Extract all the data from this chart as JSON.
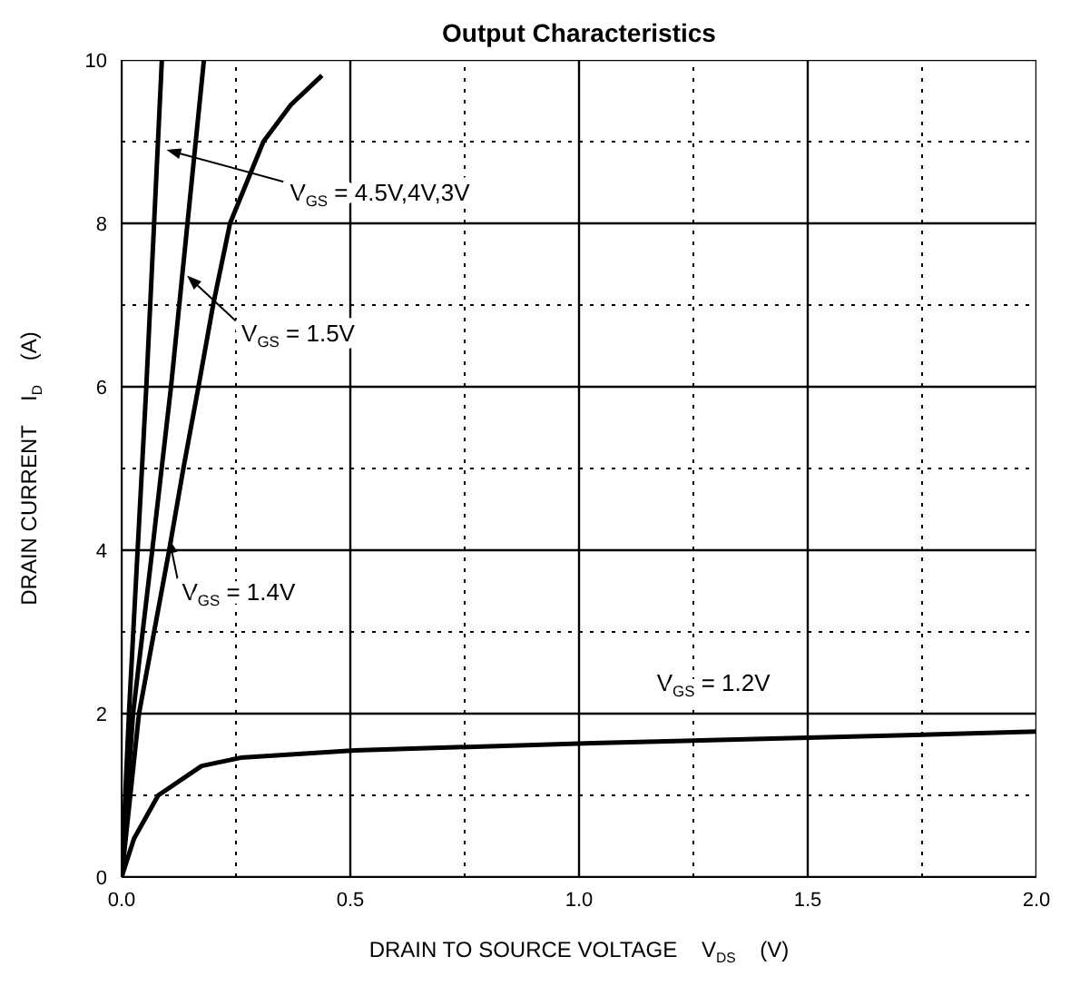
{
  "chart_data": {
    "type": "line",
    "title": "Output Characteristics",
    "xlabel": "DRAIN TO SOURCE VOLTAGE    V$_{DS}$    (V)",
    "ylabel": "DRAIN CURRENT    I$_{D}$    (A)",
    "series": [
      {
        "color": "#000000",
        "x": [
          0,
          0.016,
          0.054,
          0.088
        ],
        "values": [
          0,
          2,
          6,
          10
        ]
      },
      {
        "color": "#000000",
        "x": [
          0,
          0.025,
          0.067,
          0.108,
          0.18
        ],
        "values": [
          0,
          2,
          4,
          6,
          10
        ]
      },
      {
        "color": "#000000",
        "x": [
          0,
          0.038,
          0.104,
          0.135,
          0.168,
          0.2,
          0.237,
          0.31,
          0.37,
          0.438
        ],
        "values": [
          0,
          2,
          4,
          5,
          6,
          7,
          8,
          9,
          9.45,
          9.81
        ]
      },
      {
        "color": "#000000",
        "x": [
          0,
          0.027,
          0.08,
          0.175,
          0.26,
          0.51,
          1.03,
          1.54,
          2.0
        ],
        "values": [
          0,
          0.47,
          1.0,
          1.36,
          1.46,
          1.55,
          1.64,
          1.71,
          1.78
        ]
      }
    ],
    "annotations": [
      {
        "text": "V$_{GS}$ = 4.5V,4V,3V",
        "x": 0.098,
        "y": 8.9
      },
      {
        "text": "V$_{GS}$ = 1.5V",
        "x": 0.143,
        "y": 7.36
      },
      {
        "text": "V$_{GS}$ = 1.4V",
        "x": 0.104,
        "y": 4.14
      },
      "V$_{GS}$ = 1.2V"
    ],
    "xlim": [
      0,
      2
    ],
    "ylim": [
      0,
      10
    ],
    "xticks": [
      {
        "value": 0,
        "label": "0.0"
      },
      {
        "value": 0.25,
        "label": null
      },
      {
        "value": 0.5,
        "label": "0.5"
      },
      {
        "value": 0.75,
        "label": null
      },
      {
        "value": 1,
        "label": "1.0"
      },
      {
        "value": 1.25,
        "label": null
      },
      {
        "value": 1.5,
        "label": "1.5"
      },
      {
        "value": 1.75,
        "label": null
      },
      {
        "value": 2,
        "label": "2.0"
      }
    ],
    "yticks": [
      0,
      {
        "value": 1,
        "label": null
      },
      2,
      {
        "value": 3,
        "label": null
      },
      4,
      {
        "value": 5,
        "label": null
      },
      6,
      {
        "value": 7,
        "label": null
      },
      8,
      {
        "value": 9,
        "label": null
      },
      10
    ],
    "grid": true,
    "marker": "none",
    "line_style": "solid"
  }
}
